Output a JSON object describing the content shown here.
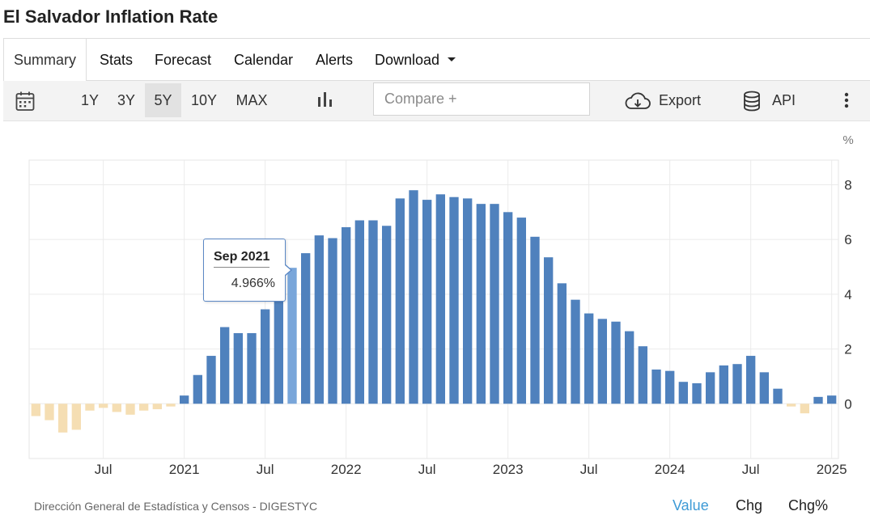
{
  "title": "El Salvador Inflation Rate",
  "tabs": [
    {
      "label": "Summary"
    },
    {
      "label": "Stats"
    },
    {
      "label": "Forecast"
    },
    {
      "label": "Calendar"
    },
    {
      "label": "Alerts"
    },
    {
      "label": "Download"
    }
  ],
  "toolbar": {
    "ranges": [
      "1Y",
      "3Y",
      "5Y",
      "10Y",
      "MAX"
    ],
    "selected_range": "5Y",
    "compare_placeholder": "Compare +",
    "export_label": "Export",
    "api_label": "API",
    "icons": {
      "calendar": "calendar-icon",
      "chart_type": "bar-chart-icon",
      "export": "cloud-download-icon",
      "api": "database-icon",
      "more": "more-vertical-icon"
    }
  },
  "footer": {
    "source": "Dirección General de Estadística y Censos - DIGESTYC",
    "value_tabs": [
      "Value",
      "Chg",
      "Chg%"
    ],
    "active_value_tab": "Value"
  },
  "tooltip": {
    "date": "Sep 2021",
    "value": "4.966%"
  },
  "colors": {
    "positive": "#4f81bd",
    "negative": "#f5deb3",
    "highlight": "#79a6da",
    "active_tab": "#3d9ad6"
  },
  "chart_data": {
    "type": "bar",
    "unit": "%",
    "x": [
      "2020-02",
      "2020-03",
      "2020-04",
      "2020-05",
      "2020-06",
      "2020-07",
      "2020-08",
      "2020-09",
      "2020-10",
      "2020-11",
      "2020-12",
      "2021-01",
      "2021-02",
      "2021-03",
      "2021-04",
      "2021-05",
      "2021-06",
      "2021-07",
      "2021-08",
      "2021-09",
      "2021-10",
      "2021-11",
      "2021-12",
      "2022-01",
      "2022-02",
      "2022-03",
      "2022-04",
      "2022-05",
      "2022-06",
      "2022-07",
      "2022-08",
      "2022-09",
      "2022-10",
      "2022-11",
      "2022-12",
      "2023-01",
      "2023-02",
      "2023-03",
      "2023-04",
      "2023-05",
      "2023-06",
      "2023-07",
      "2023-08",
      "2023-09",
      "2023-10",
      "2023-11",
      "2023-12",
      "2024-01",
      "2024-02",
      "2024-03",
      "2024-04",
      "2024-05",
      "2024-06",
      "2024-07",
      "2024-08",
      "2024-09",
      "2024-10",
      "2024-11",
      "2024-12",
      "2025-01"
    ],
    "values": [
      -0.45,
      -0.6,
      -1.05,
      -0.95,
      -0.25,
      -0.15,
      -0.3,
      -0.4,
      -0.25,
      -0.2,
      -0.1,
      0.3,
      1.05,
      1.75,
      2.8,
      2.58,
      2.58,
      3.45,
      4.2,
      4.966,
      5.5,
      6.15,
      6.05,
      6.45,
      6.7,
      6.7,
      6.5,
      7.5,
      7.8,
      7.45,
      7.65,
      7.55,
      7.5,
      7.3,
      7.3,
      7.0,
      6.8,
      6.1,
      5.35,
      4.4,
      3.8,
      3.3,
      3.1,
      3.0,
      2.65,
      2.1,
      1.25,
      1.2,
      0.8,
      0.75,
      1.15,
      1.4,
      1.45,
      1.75,
      1.15,
      0.55,
      -0.1,
      -0.35,
      0.25,
      0.3
    ],
    "highlight_index": 19,
    "x_tick_labels": [
      {
        "label": "Jul",
        "date": "2020-07"
      },
      {
        "label": "2021",
        "date": "2021-01"
      },
      {
        "label": "Jul",
        "date": "2021-07"
      },
      {
        "label": "2022",
        "date": "2022-01"
      },
      {
        "label": "Jul",
        "date": "2022-07"
      },
      {
        "label": "2023",
        "date": "2023-01"
      },
      {
        "label": "Jul",
        "date": "2023-07"
      },
      {
        "label": "2024",
        "date": "2024-01"
      },
      {
        "label": "Jul",
        "date": "2024-07"
      },
      {
        "label": "2025",
        "date": "2025-01"
      }
    ],
    "y_ticks": [
      0,
      2,
      4,
      6,
      8
    ],
    "ylim": [
      -2,
      8.9
    ],
    "y_axis_position": "right",
    "grid": true
  }
}
